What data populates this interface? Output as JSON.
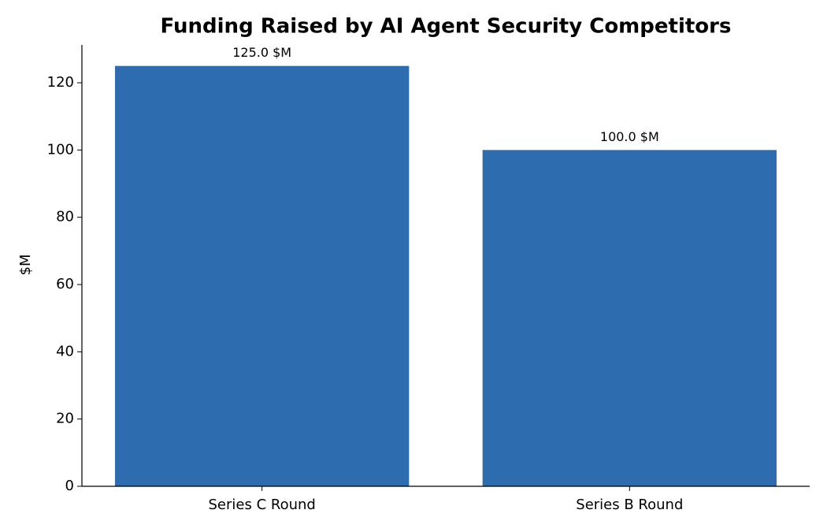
{
  "chart_data": {
    "type": "bar",
    "title": "Funding Raised by AI Agent Security Competitors",
    "y_label": "$M",
    "categories": [
      "Series C Round",
      "Series B Round"
    ],
    "values": [
      125.0,
      100.0
    ],
    "value_labels": [
      "125.0 $M",
      "100.0 $M"
    ],
    "color": "#2d6daf",
    "ylim": [
      0,
      131.25
    ],
    "yticks": [
      0,
      20,
      40,
      60,
      80,
      100,
      120
    ],
    "grid": false
  }
}
